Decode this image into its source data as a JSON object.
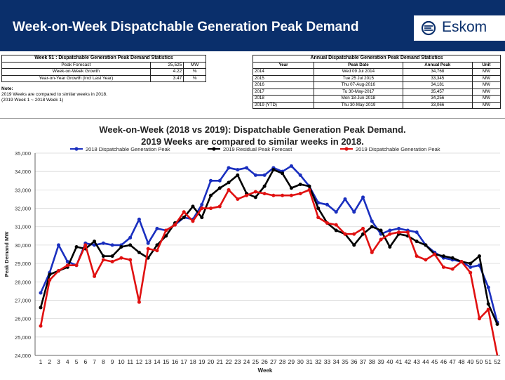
{
  "header": {
    "title": "Week-on-Week Dispatchable Generation Peak Demand",
    "logo_text": "Eskom",
    "colors": {
      "header_bg": "#0a2f6b",
      "accent": "#1f3c88"
    }
  },
  "stats_left": {
    "caption": "Week 51 : Dispatchable Generation Peak Demand Statistics",
    "rows": [
      {
        "label": "Peak Forecast",
        "value": "25,525",
        "unit": "MW"
      },
      {
        "label": "Week-on-Week Growth",
        "value": "4.22",
        "unit": "%"
      },
      {
        "label": "Year-on-Year Growth (Incl Last Year)",
        "value": "3.47",
        "unit": "%"
      }
    ]
  },
  "note": {
    "title": "Note:",
    "line1": "2019 Weeks are compared to similar weeks in 2018.",
    "line2": "(2019 Week 1 ~ 2018 Week 1)"
  },
  "stats_right": {
    "caption": "Annual Dispatchable Generation Peak Demand Statistics",
    "headers": [
      "Year",
      "Peak Date",
      "Annual Peak",
      "Unit"
    ],
    "rows": [
      {
        "year": "2014",
        "date": "Wed 09 Jul 2014",
        "peak": "34,768",
        "unit": "MW"
      },
      {
        "year": "2015",
        "date": "Tue 25 Jul 2015",
        "peak": "33,345",
        "unit": "MW"
      },
      {
        "year": "2016",
        "date": "Thu 07-Aug-2016",
        "peak": "34,181",
        "unit": "MW"
      },
      {
        "year": "2017",
        "date": "Tu 30-May-2017",
        "peak": "35,457",
        "unit": "MW"
      },
      {
        "year": "2018",
        "date": "Mon 18-Jun-2018",
        "peak": "34,256",
        "unit": "MW"
      },
      {
        "year": "2019 (YTD)",
        "date": "Thu 30-May-2019",
        "peak": "33,066",
        "unit": "MW"
      }
    ]
  },
  "chart_data": {
    "type": "line",
    "title_line1": "Week-on-Week (2018 vs 2019): Dispatchable Generation Peak Demand.",
    "title_line2": "2019 Weeks are compared to similar weeks in 2018.",
    "xlabel": "Week",
    "ylabel": "Peak Demand MW",
    "ylim": [
      24000,
      35000
    ],
    "yticks": [
      "24,000",
      "25,000",
      "26,000",
      "27,000",
      "28,000",
      "29,000",
      "30,000",
      "31,000",
      "32,000",
      "33,000",
      "34,000",
      "35,000"
    ],
    "x": [
      1,
      2,
      3,
      4,
      5,
      6,
      7,
      8,
      9,
      10,
      11,
      12,
      13,
      14,
      15,
      16,
      17,
      18,
      19,
      20,
      21,
      22,
      23,
      24,
      25,
      26,
      27,
      28,
      29,
      30,
      31,
      32,
      33,
      34,
      35,
      36,
      37,
      38,
      39,
      40,
      41,
      42,
      43,
      44,
      45,
      46,
      47,
      48,
      49,
      50,
      51,
      52
    ],
    "grid": "horizontal",
    "legend": "top",
    "series": [
      {
        "name": "2018 Dispatchable Generation Peak",
        "color": "#1a2fbf",
        "values": [
          27400,
          28500,
          30000,
          29100,
          28900,
          30100,
          30000,
          30100,
          30000,
          30000,
          30400,
          31400,
          30100,
          30900,
          30800,
          31100,
          31500,
          31400,
          32200,
          33500,
          33500,
          34200,
          34100,
          34200,
          33800,
          33800,
          34200,
          34000,
          34300,
          33800,
          33200,
          32300,
          32200,
          31800,
          32500,
          31800,
          32600,
          31300,
          30600,
          30800,
          30900,
          30800,
          30700,
          30000,
          29600,
          29300,
          29200,
          29100,
          28800,
          28900,
          27700,
          25800
        ]
      },
      {
        "name": "2019 Residual Peak Forecast",
        "color": "#000000",
        "values": [
          26600,
          28400,
          28600,
          28800,
          29900,
          29800,
          30200,
          29400,
          29400,
          29900,
          30000,
          29600,
          29300,
          30000,
          30500,
          31200,
          31500,
          32100,
          31500,
          32700,
          33100,
          33400,
          33800,
          32800,
          32600,
          33200,
          34100,
          33900,
          33100,
          33300,
          33200,
          32000,
          31200,
          30800,
          30600,
          30000,
          30600,
          31000,
          30800,
          29900,
          30600,
          30500,
          30200,
          30000,
          29500,
          29400,
          29300,
          29100,
          29000,
          29400,
          26800,
          25700
        ]
      },
      {
        "name": "2019 Dispatchable Generation Peak",
        "color": "#e01010",
        "values": [
          25600,
          28100,
          28600,
          28900,
          28900,
          30000,
          28300,
          29200,
          29100,
          29300,
          29200,
          26900,
          29800,
          29700,
          30800,
          31100,
          31800,
          31300,
          32000,
          32000,
          32100,
          33000,
          32500,
          32700,
          32900,
          32800,
          32700,
          32700,
          32700,
          32800,
          33000,
          31500,
          31200,
          31100,
          30600,
          30600,
          30900,
          29600,
          30300,
          30600,
          30700,
          30700,
          29400,
          29200,
          29500,
          28800,
          28700,
          29100,
          28500,
          26000,
          26500,
          23900
        ]
      }
    ]
  }
}
